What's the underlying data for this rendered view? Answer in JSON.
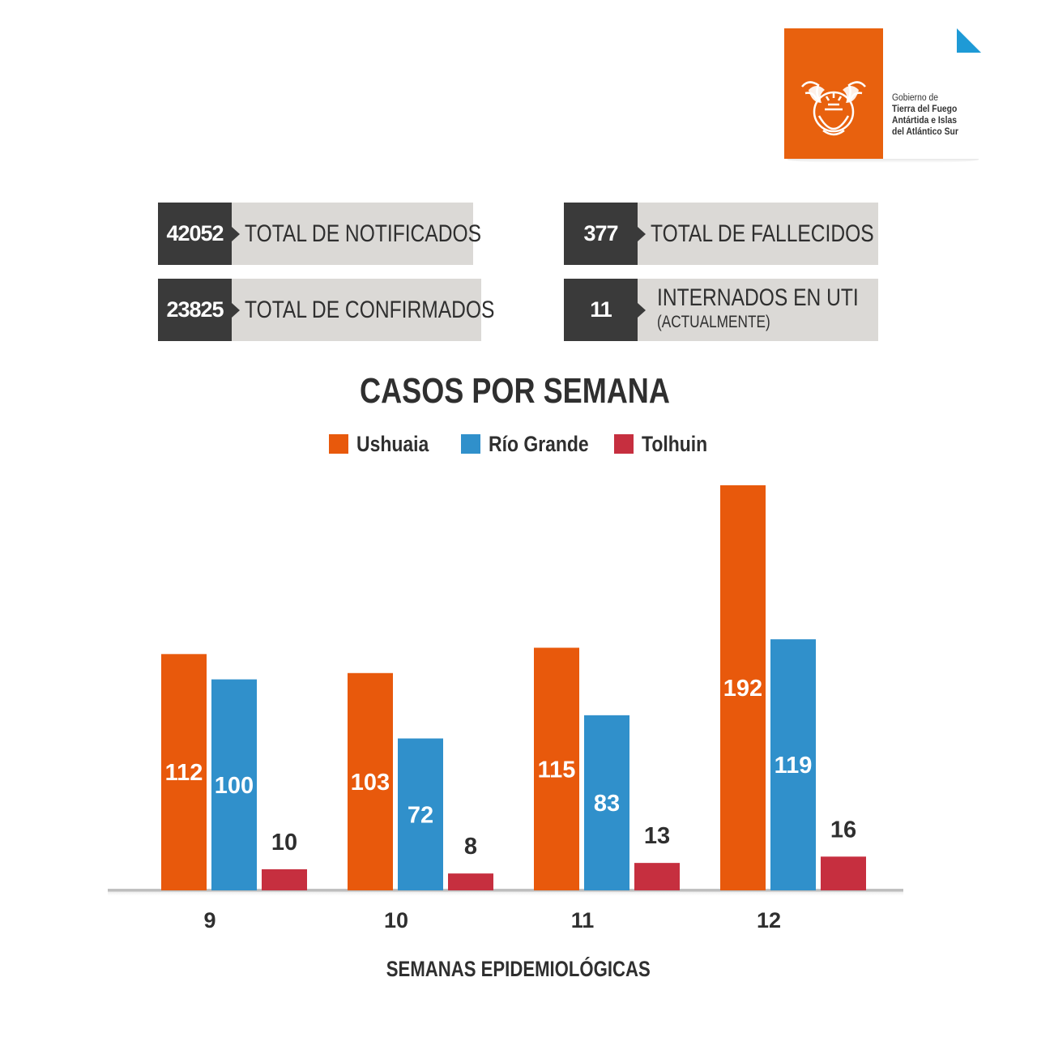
{
  "logo": {
    "line1": "Gobierno de",
    "line2": "Tierra del Fuego",
    "line3": "Antártida e Islas",
    "line4": "del Atlántico Sur",
    "orange": "#e8610e",
    "accent": "#1e9ad6"
  },
  "stats": {
    "notificados": {
      "value": "42052",
      "label": "TOTAL DE NOTIFICADOS"
    },
    "confirmados": {
      "value": "23825",
      "label": "TOTAL DE CONFIRMADOS"
    },
    "fallecidos": {
      "value": "377",
      "label": "TOTAL DE FALLECIDOS"
    },
    "uti": {
      "value": "11",
      "label": "INTERNADOS EN UTI",
      "sublabel": "(ACTUALMENTE)"
    }
  },
  "chart_data": {
    "type": "bar",
    "title": "CASOS POR SEMANA",
    "xlabel": "SEMANAS EPIDEMIOLÓGICAS",
    "ylabel": "",
    "categories": [
      "9",
      "10",
      "11",
      "12"
    ],
    "series": [
      {
        "name": "Ushuaia",
        "color": "#e8590c",
        "values": [
          112,
          103,
          115,
          192
        ]
      },
      {
        "name": "Río Grande",
        "color": "#3090cb",
        "values": [
          100,
          72,
          83,
          119
        ]
      },
      {
        "name": "Tolhuin",
        "color": "#c62f3f",
        "values": [
          10,
          8,
          13,
          16
        ]
      }
    ],
    "ylim": [
      0,
      192
    ],
    "grid": false,
    "legend": "top-center"
  }
}
